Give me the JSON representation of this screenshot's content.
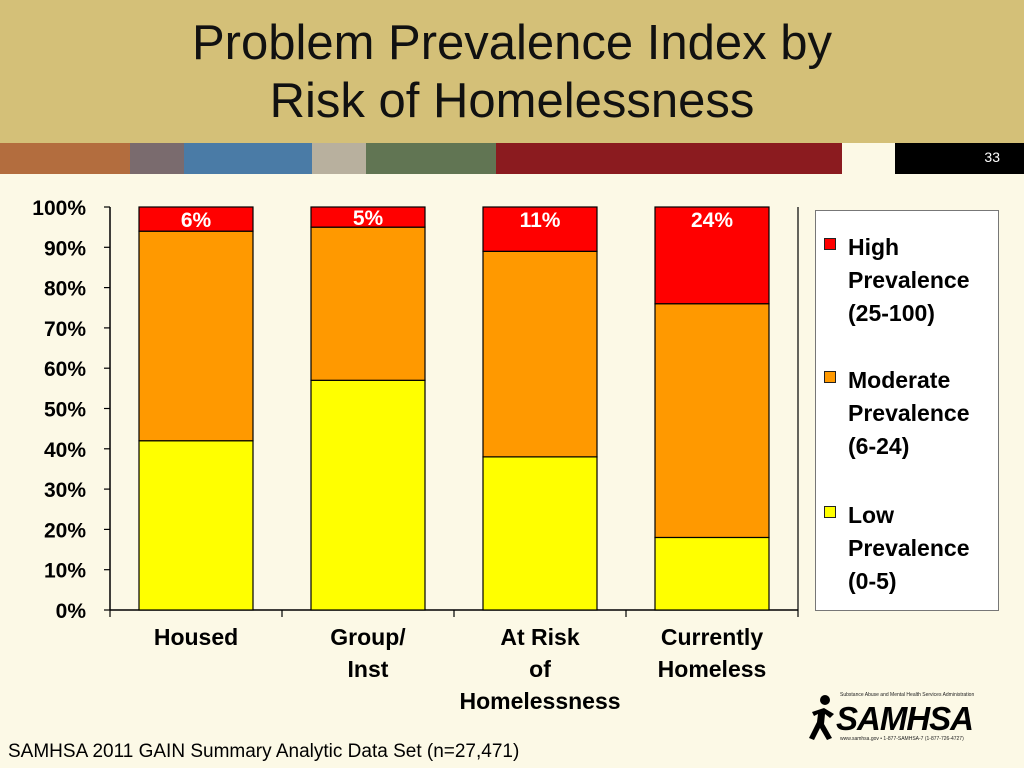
{
  "slide": {
    "title_line1": "Problem Prevalence Index by",
    "title_line2": "Risk of Homelessness",
    "page_number": "33",
    "footer": "SAMHSA 2011 GAIN Summary Analytic Data Set (n=27,471)",
    "logo_text": "SAMHSA",
    "logo_tagline": "Substance Abuse and Mental Health Services Administration",
    "logo_contact": "www.samhsa.gov • 1-877-SAMHSA-7 (1-877-726-4727)",
    "band_colors": [
      "#b36d3e",
      "#7a6b6e",
      "#4a7ba6",
      "#b8b09e",
      "#617553",
      "#8b1b1f",
      "#fcf9e6",
      "#000000"
    ]
  },
  "chart_data": {
    "type": "bar",
    "stacked": true,
    "categories": [
      [
        "Housed"
      ],
      [
        "Group/",
        "Inst"
      ],
      [
        "At Risk",
        "of",
        "Homelessness"
      ],
      [
        "Currently",
        "Homeless"
      ]
    ],
    "series": [
      {
        "name": "Low Prevalence (0-5)",
        "color": "#ffff00",
        "values": [
          42,
          57,
          38,
          18
        ]
      },
      {
        "name": "Moderate Prevalence (6-24)",
        "color": "#ff9900",
        "values": [
          52,
          38,
          51,
          58
        ]
      },
      {
        "name": "High Prevalence (25-100)",
        "color": "#ff0000",
        "values": [
          6,
          5,
          11,
          24
        ]
      }
    ],
    "data_labels": [
      "6%",
      "5%",
      "11%",
      "24%"
    ],
    "y_ticks": [
      "0%",
      "10%",
      "20%",
      "30%",
      "40%",
      "50%",
      "60%",
      "70%",
      "80%",
      "90%",
      "100%"
    ],
    "ylim": [
      0,
      100
    ],
    "legend": {
      "position": "right",
      "items": [
        {
          "label": "High\nPrevalence\n(25-100)",
          "color": "#ff0000"
        },
        {
          "label": "Moderate\nPrevalence\n(6-24)",
          "color": "#ff9900"
        },
        {
          "label": "Low\nPrevalence\n(0-5)",
          "color": "#ffff00"
        }
      ]
    }
  }
}
